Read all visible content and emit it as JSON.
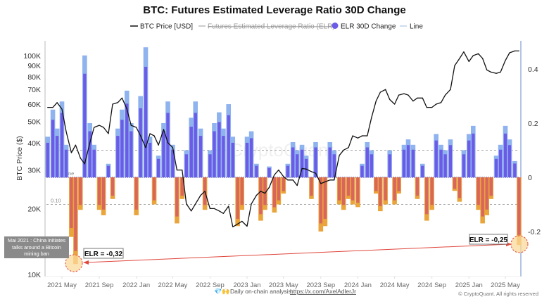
{
  "chart_data": {
    "type": "bar+line",
    "title": "BTC: Futures Estimated Leverage Ratio 30D Change",
    "ylabel": "BTC Price ($)",
    "y_left": {
      "scale": "log",
      "range": [
        10000,
        120000
      ],
      "ticks": [
        "10K",
        "20K",
        "30K",
        "40K",
        "50K",
        "60K",
        "70K",
        "80K",
        "90K",
        "100K"
      ],
      "tick_values": [
        10000,
        20000,
        30000,
        40000,
        50000,
        60000,
        70000,
        80000,
        90000,
        100000
      ]
    },
    "y_right": {
      "scale": "linear",
      "range": [
        -0.37,
        0.52
      ],
      "ticks": [
        "-0.2",
        "0",
        "0.2",
        "0.4"
      ],
      "tick_values": [
        -0.2,
        0,
        0.2,
        0.4
      ]
    },
    "x_ticks": [
      "2021 May",
      "2021 Sep",
      "2022 Jan",
      "2022 May",
      "2022 Sep",
      "2023 Jan",
      "2023 May",
      "2023 Sep",
      "2024 Jan",
      "2024 May",
      "2024 Sep",
      "2025 Jan",
      "2025 May"
    ],
    "x_tick_dates": [
      "2021-05-01",
      "2021-09-01",
      "2022-01-01",
      "2022-05-01",
      "2022-09-01",
      "2023-01-01",
      "2023-05-01",
      "2023-09-01",
      "2024-01-01",
      "2024-05-01",
      "2024-09-01",
      "2025-01-01",
      "2025-05-01"
    ],
    "legend": [
      {
        "name": "BTC Price [USD]",
        "color": "#111111",
        "style": "line"
      },
      {
        "name": "Futures Estimated Leverage Ratio (ELR)",
        "color": "#999999",
        "style": "line-hidden"
      },
      {
        "name": "ELR 30D Change",
        "color": "#6b5ce7",
        "style": "dot"
      },
      {
        "name": "Line",
        "color": "#9bbbe0",
        "style": "line"
      }
    ],
    "legend_position": "top",
    "reference_lines": [
      {
        "value": 0,
        "label": "Base Line"
      },
      {
        "value": 0.1,
        "label": "0.10"
      },
      {
        "value": -0.1,
        "label": "0.10"
      }
    ],
    "colors": {
      "positive": "#6b5ce7",
      "positive_edge": "#8fb3ee",
      "negative": "#d9665a",
      "negative_edge": "#e9a53c",
      "price": "#111111",
      "right_axis": "#8aa6d6"
    },
    "dates": [
      "2021-03-15",
      "2021-04-01",
      "2021-04-15",
      "2021-05-01",
      "2021-05-15",
      "2021-06-01",
      "2021-06-15",
      "2021-07-01",
      "2021-07-15",
      "2021-08-01",
      "2021-08-15",
      "2021-09-01",
      "2021-09-15",
      "2021-10-01",
      "2021-10-15",
      "2021-11-01",
      "2021-11-15",
      "2021-12-01",
      "2021-12-15",
      "2022-01-01",
      "2022-01-15",
      "2022-02-01",
      "2022-02-15",
      "2022-03-01",
      "2022-03-15",
      "2022-04-01",
      "2022-04-15",
      "2022-05-01",
      "2022-05-15",
      "2022-06-01",
      "2022-06-15",
      "2022-07-01",
      "2022-07-15",
      "2022-08-01",
      "2022-08-15",
      "2022-09-01",
      "2022-09-15",
      "2022-10-01",
      "2022-10-15",
      "2022-11-01",
      "2022-11-15",
      "2022-12-01",
      "2022-12-15",
      "2023-01-01",
      "2023-01-15",
      "2023-02-01",
      "2023-02-15",
      "2023-03-01",
      "2023-03-15",
      "2023-04-01",
      "2023-04-15",
      "2023-05-01",
      "2023-05-15",
      "2023-06-01",
      "2023-06-15",
      "2023-07-01",
      "2023-07-15",
      "2023-08-01",
      "2023-08-15",
      "2023-09-01",
      "2023-09-15",
      "2023-10-01",
      "2023-10-15",
      "2023-11-01",
      "2023-11-15",
      "2023-12-01",
      "2023-12-15",
      "2024-01-01",
      "2024-01-15",
      "2024-02-01",
      "2024-02-15",
      "2024-03-01",
      "2024-03-15",
      "2024-04-01",
      "2024-04-15",
      "2024-05-01",
      "2024-05-15",
      "2024-06-01",
      "2024-06-15",
      "2024-07-01",
      "2024-07-15",
      "2024-08-01",
      "2024-08-15",
      "2024-09-01",
      "2024-09-15",
      "2024-10-01",
      "2024-10-15",
      "2024-11-01",
      "2024-11-15",
      "2024-12-01",
      "2024-12-15",
      "2025-01-01",
      "2025-01-15",
      "2025-02-01",
      "2025-02-15",
      "2025-03-01",
      "2025-03-15",
      "2025-04-01",
      "2025-04-15",
      "2025-05-01",
      "2025-05-15",
      "2025-06-01",
      "2025-06-15"
    ],
    "series": [
      {
        "name": "BTC Price [USD]",
        "type": "line",
        "axis": "left",
        "values": [
          58000,
          58000,
          61000,
          57000,
          45000,
          36000,
          39000,
          34000,
          32000,
          40000,
          47000,
          48000,
          47000,
          44000,
          60000,
          61000,
          64000,
          57000,
          48000,
          47000,
          43000,
          38000,
          44000,
          43000,
          39000,
          46000,
          40000,
          38000,
          30000,
          30000,
          21000,
          19500,
          21000,
          23000,
          24000,
          20000,
          20000,
          19500,
          19000,
          20500,
          16500,
          17000,
          17500,
          16600,
          21000,
          23000,
          24000,
          23500,
          25000,
          28500,
          30000,
          28000,
          27000,
          27000,
          25500,
          30500,
          30300,
          29500,
          29000,
          26000,
          26500,
          27000,
          27000,
          35000,
          37000,
          38000,
          43000,
          42000,
          43000,
          43000,
          52000,
          62000,
          68000,
          70000,
          63000,
          60000,
          66000,
          67000,
          66000,
          62000,
          64000,
          64000,
          58000,
          58000,
          60000,
          61000,
          66000,
          70000,
          90000,
          97000,
          104000,
          94000,
          100000,
          102000,
          97000,
          86000,
          84000,
          83000,
          84000,
          95000,
          103000,
          105000,
          105000
        ]
      },
      {
        "name": "ELR 30D Change",
        "type": "bar",
        "axis": "right",
        "values": [
          0.15,
          0.25,
          0.18,
          0.28,
          0.12,
          -0.22,
          -0.32,
          -0.12,
          0.45,
          0.2,
          0.12,
          -0.12,
          -0.14,
          0.05,
          -0.08,
          0.18,
          0.25,
          0.32,
          0.2,
          -0.14,
          0.3,
          0.48,
          0.15,
          -0.1,
          0.08,
          0.2,
          0.28,
          0.12,
          -0.17,
          -0.08,
          0.1,
          0.22,
          0.28,
          0.18,
          -0.12,
          0.1,
          0.2,
          0.24,
          0.18,
          0.27,
          0.15,
          -0.18,
          -0.12,
          0.15,
          0.17,
          0.05,
          -0.16,
          -0.12,
          0.04,
          -0.13,
          -0.1,
          -0.06,
          0.05,
          0.13,
          0.1,
          0.12,
          0.08,
          -0.08,
          0.13,
          -0.2,
          -0.18,
          0.13,
          0.1,
          -0.1,
          -0.12,
          -0.08,
          -0.1,
          -0.11,
          0.05,
          0.13,
          0.1,
          -0.06,
          -0.125,
          -0.1,
          0.1,
          -0.1,
          -0.06,
          0.12,
          0.14,
          0.12,
          -0.08,
          0.05,
          -0.16,
          -0.12,
          0.16,
          0.12,
          0.1,
          0.14,
          -0.05,
          -0.09,
          0.1,
          0.16,
          0.19,
          -0.12,
          -0.17,
          -0.14,
          -0.08,
          0.08,
          0.12,
          0.19,
          0.14,
          0.06,
          -0.25
        ]
      }
    ],
    "annotations": {
      "event_note": "Mai 2021 : China initiates talks around a Bitcoin mining ban",
      "low_2021": "ELR = -0,32",
      "low_2025": "ELR = -0,25"
    }
  },
  "watermark": "CryptoQuant",
  "footer": {
    "analysis_prefix": "Daily on-chain analysis:",
    "analysis_link": "https://x.com/AxelAdlerJr",
    "emoji": "💎🙌",
    "copyright": "© CryptoQuant. All rights reserved"
  }
}
